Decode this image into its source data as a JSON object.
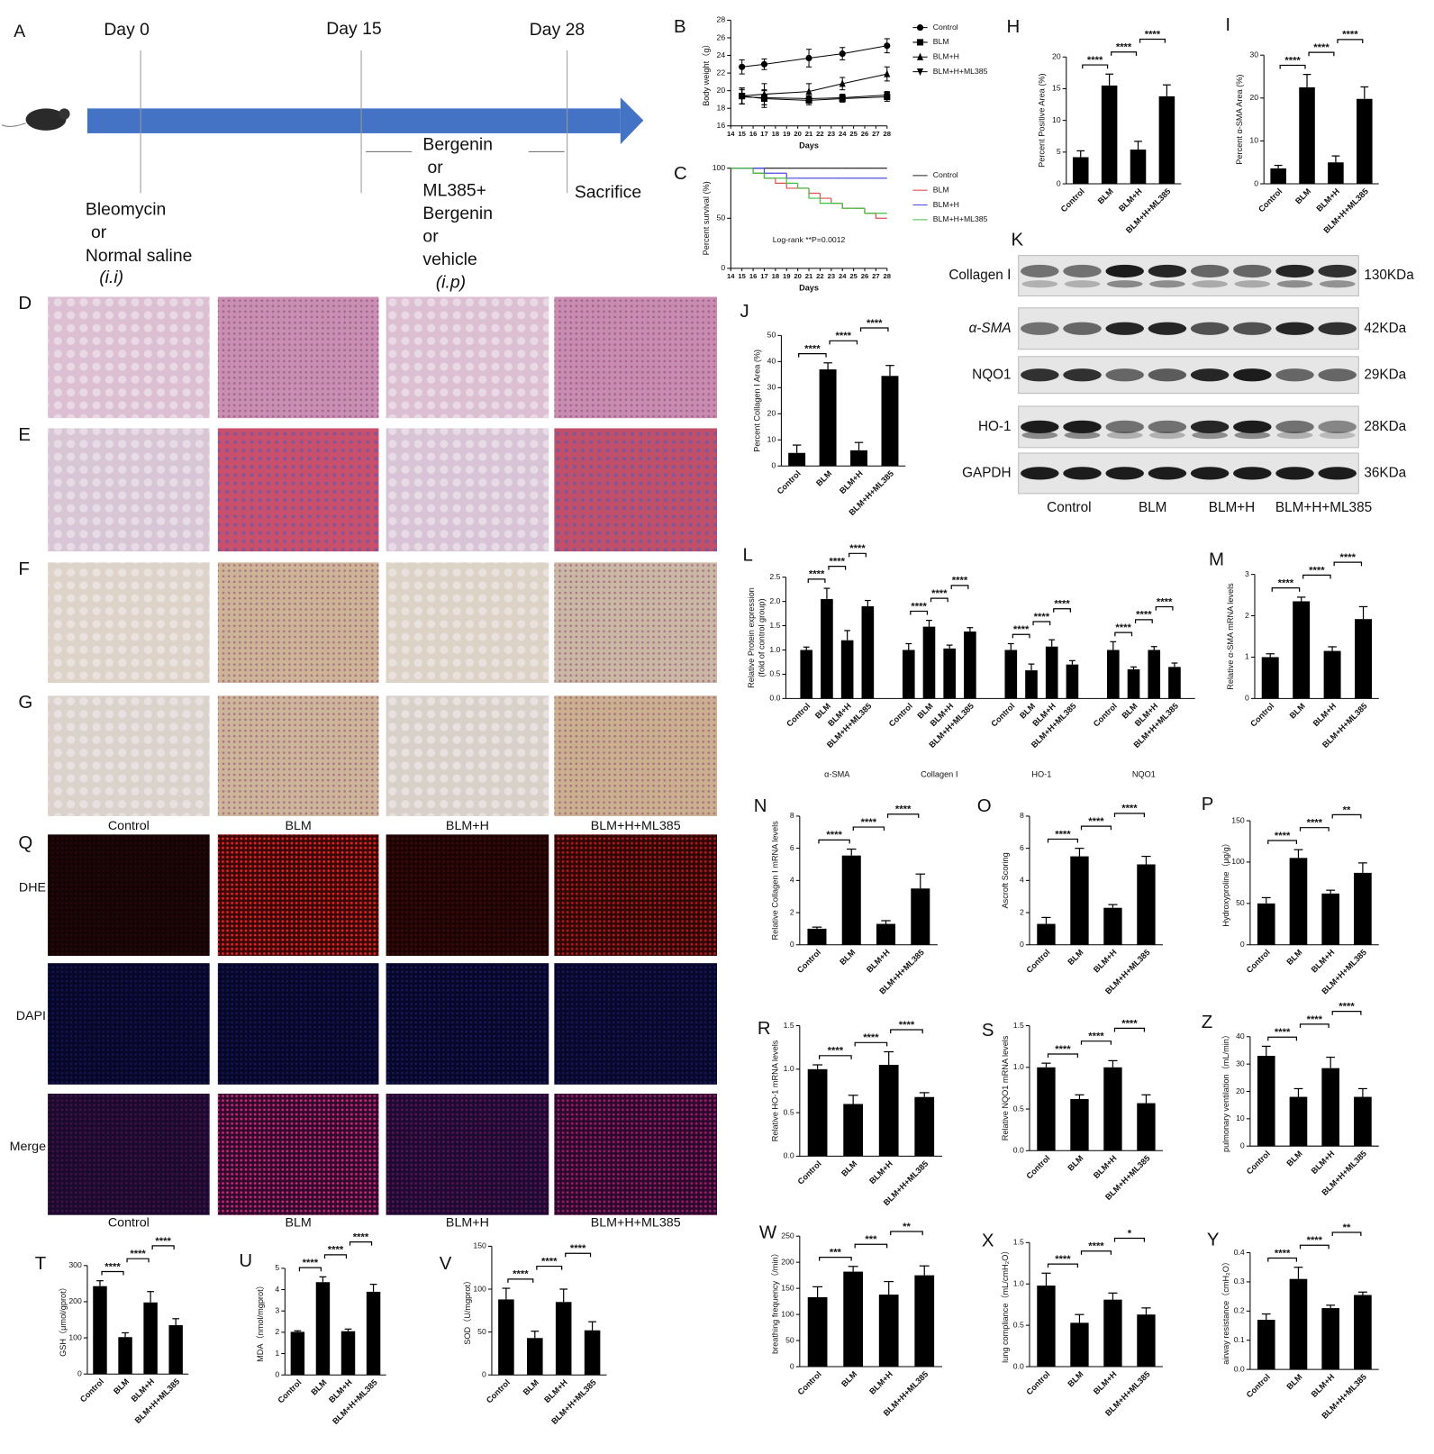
{
  "panel_a": {
    "letter": "A",
    "days": [
      "Day 0",
      "Day 15",
      "Day 28"
    ],
    "induction": [
      "Bleomycin",
      "or",
      "Normal saline",
      "(i.i)"
    ],
    "treatment": [
      "Bergenin",
      "or",
      "ML385+",
      "Bergenin",
      "or",
      "vehicle",
      "(i.p)"
    ],
    "endpoint": "Sacrifice"
  },
  "histology": {
    "letters": [
      "D",
      "E",
      "F",
      "G"
    ],
    "groups": [
      "Control",
      "BLM",
      "BLM+H",
      "BLM+H+ML385"
    ]
  },
  "fluorescence": {
    "letter": "Q",
    "stains": [
      "DHE",
      "DAPI",
      "Merge"
    ],
    "groups": [
      "Control",
      "BLM",
      "BLM+H",
      "BLM+H+ML385"
    ]
  },
  "western_blot": {
    "letter": "K",
    "proteins": [
      "Collagen Ⅰ",
      "α-SMA",
      "NQO1",
      "HO-1",
      "GAPDH"
    ],
    "sizes": [
      "130KDa",
      "42KDa",
      "29KDa",
      "28KDa",
      "36KDa"
    ],
    "groups": [
      "Control",
      "BLM",
      "BLM+H",
      "BLM+H+ML385"
    ]
  },
  "chart_data": [
    {
      "type": "line",
      "panel": "B",
      "xlabel": "Days",
      "ylabel": "Body weight（g）",
      "x": [
        15,
        17,
        21,
        24,
        28
      ],
      "xlim": [
        14,
        28
      ],
      "xticks": [
        14,
        15,
        16,
        17,
        18,
        19,
        20,
        21,
        22,
        23,
        24,
        25,
        26,
        27,
        28
      ],
      "ylim": [
        16,
        28
      ],
      "yticks": [
        16,
        18,
        20,
        22,
        24,
        26,
        28
      ],
      "legend": "right",
      "series": [
        {
          "name": "Control",
          "color": "#000000",
          "marker": "circle",
          "values": [
            22.7,
            23.0,
            23.7,
            24.2,
            25.1
          ],
          "errors": [
            0.8,
            0.6,
            1.0,
            0.7,
            0.8
          ]
        },
        {
          "name": "BLM",
          "color": "#000000",
          "marker": "square",
          "values": [
            19.4,
            19.1,
            18.9,
            19.1,
            19.3
          ],
          "errors": [
            0.9,
            1.0,
            0.5,
            0.4,
            0.5
          ]
        },
        {
          "name": "BLM+H",
          "color": "#000000",
          "marker": "triangle",
          "values": [
            19.4,
            19.6,
            19.9,
            20.8,
            21.9
          ],
          "errors": [
            0.9,
            1.2,
            0.9,
            0.7,
            0.8
          ]
        },
        {
          "name": "BLM+H+ML385",
          "color": "#000000",
          "marker": "triangle-down",
          "values": [
            19.3,
            19.2,
            19.1,
            19.2,
            19.5
          ],
          "errors": [
            0.8,
            0.8,
            0.5,
            0.4,
            0.4
          ]
        }
      ]
    },
    {
      "type": "line",
      "step": true,
      "panel": "C",
      "xlabel": "Days",
      "ylabel": "Percent survival (%)",
      "annotation": "Log-rank  **P=0.0012",
      "x": [
        14,
        15,
        16,
        17,
        18,
        19,
        20,
        21,
        22,
        23,
        24,
        25,
        26,
        27,
        28
      ],
      "xlim": [
        14,
        28
      ],
      "xticks": [
        14,
        15,
        16,
        17,
        18,
        19,
        20,
        21,
        22,
        23,
        24,
        25,
        26,
        27,
        28
      ],
      "ylim": [
        0,
        100
      ],
      "yticks": [
        0,
        50,
        100
      ],
      "legend": "right",
      "series": [
        {
          "name": "Control",
          "color": "#222222",
          "values": [
            100,
            100,
            100,
            100,
            100,
            100,
            100,
            100,
            100,
            100,
            100,
            100,
            100,
            100,
            100
          ]
        },
        {
          "name": "BLM",
          "color": "#e05050",
          "values": [
            100,
            100,
            95,
            90,
            85,
            80,
            80,
            75,
            70,
            65,
            60,
            60,
            55,
            50,
            50
          ]
        },
        {
          "name": "BLM+H",
          "color": "#4a4ae0",
          "values": [
            100,
            100,
            100,
            95,
            95,
            90,
            90,
            90,
            90,
            90,
            90,
            90,
            90,
            90,
            90
          ]
        },
        {
          "name": "BLM+H+ML385",
          "color": "#40c040",
          "values": [
            100,
            100,
            95,
            90,
            90,
            85,
            80,
            70,
            65,
            65,
            60,
            60,
            55,
            55,
            55
          ]
        }
      ]
    },
    {
      "type": "bar",
      "panel": "H",
      "ylabel": "Percent Positive Area (%)",
      "color": "#000000",
      "categories": [
        "Control",
        "BLM",
        "BLM+H",
        "BLM+H+ML385"
      ],
      "values": [
        4.2,
        15.5,
        5.4,
        13.8
      ],
      "errors": [
        1.0,
        1.8,
        1.3,
        1.8
      ],
      "significance": [
        "****",
        "****",
        "****"
      ],
      "ylim": [
        0,
        20
      ],
      "yticks": [
        0,
        5,
        10,
        15,
        20
      ]
    },
    {
      "type": "bar",
      "panel": "I",
      "ylabel": "Percent α-SMA Area (%)",
      "color": "#000000",
      "categories": [
        "Control",
        "BLM",
        "BLM+H",
        "BLM+H+ML385"
      ],
      "values": [
        3.6,
        22.5,
        5.0,
        19.8
      ],
      "errors": [
        0.7,
        3.0,
        1.5,
        2.8
      ],
      "significance": [
        "****",
        "****",
        "****"
      ],
      "ylim": [
        0,
        30
      ],
      "yticks": [
        0,
        10,
        20,
        30
      ]
    },
    {
      "type": "bar",
      "panel": "J",
      "ylabel": "Percent Collagen Ⅰ Area (%)",
      "color": "#000000",
      "categories": [
        "Control",
        "BLM",
        "BLM+H",
        "BLM+H+ML385"
      ],
      "values": [
        5,
        37,
        6,
        34.5
      ],
      "errors": [
        3,
        2.5,
        3,
        4
      ],
      "significance": [
        "****",
        "****",
        "****"
      ],
      "ylim": [
        0,
        50
      ],
      "yticks": [
        0,
        10,
        20,
        30,
        40,
        50
      ]
    },
    {
      "type": "grouped_bar",
      "panel": "L",
      "ylabel": [
        "Relative Protein expression",
        "(fold of control group)"
      ],
      "color": "#000000",
      "categories": [
        "Control",
        "BLM",
        "BLM+H",
        "BLM+H+ML385"
      ],
      "ylim": [
        0,
        2.5
      ],
      "yticks": [
        {
          "value": 0,
          "label": "0.0"
        },
        0.5,
        {
          "value": 1,
          "label": "1.0"
        },
        1.5,
        {
          "value": 2,
          "label": "2.0"
        },
        2.5
      ],
      "groups": [
        {
          "name": "α-SMA",
          "values": [
            1.0,
            2.05,
            1.2,
            1.9
          ],
          "errors": [
            0.06,
            0.22,
            0.2,
            0.12
          ],
          "significance": [
            "****",
            "****",
            "****"
          ]
        },
        {
          "name": "Collagen Ⅰ",
          "values": [
            1.0,
            1.48,
            1.03,
            1.38
          ],
          "errors": [
            0.13,
            0.13,
            0.07,
            0.08
          ],
          "significance": [
            "****",
            "****",
            "****"
          ]
        },
        {
          "name": "HO-1",
          "values": [
            1.0,
            0.58,
            1.07,
            0.7
          ],
          "errors": [
            0.13,
            0.13,
            0.14,
            0.08
          ],
          "significance": [
            "****",
            "****",
            "****"
          ]
        },
        {
          "name": "NQO1",
          "values": [
            1.0,
            0.6,
            1.0,
            0.65
          ],
          "errors": [
            0.17,
            0.05,
            0.07,
            0.08
          ],
          "significance": [
            "****",
            "****",
            "****"
          ]
        }
      ]
    },
    {
      "type": "bar",
      "panel": "M",
      "ylabel": "Relative α-SMA mRNA levels",
      "color": "#000000",
      "categories": [
        "Control",
        "BLM",
        "BLM+H",
        "BLM+H+ML385"
      ],
      "values": [
        1.0,
        2.35,
        1.15,
        1.92
      ],
      "errors": [
        0.08,
        0.1,
        0.1,
        0.3
      ],
      "significance": [
        "****",
        "****",
        "****"
      ],
      "ylim": [
        0,
        3
      ],
      "yticks": [
        0,
        1,
        2,
        3
      ]
    },
    {
      "type": "bar",
      "panel": "N",
      "ylabel": "Relative Collagen Ⅰ mRNA levels",
      "color": "#000000",
      "categories": [
        "Control",
        "BLM",
        "BLM+H",
        "BLM+H+ML385"
      ],
      "values": [
        1.0,
        5.55,
        1.3,
        3.5
      ],
      "errors": [
        0.1,
        0.4,
        0.2,
        0.9
      ],
      "significance": [
        "****",
        "****",
        "****"
      ],
      "ylim": [
        0,
        8
      ],
      "yticks": [
        0,
        2,
        4,
        6,
        8
      ]
    },
    {
      "type": "bar",
      "panel": "O",
      "ylabel": "Ascroft Scoring",
      "color": "#000000",
      "categories": [
        "Control",
        "BLM",
        "BLM+H",
        "BLM+H+ML385"
      ],
      "values": [
        1.3,
        5.5,
        2.3,
        5.0
      ],
      "errors": [
        0.4,
        0.5,
        0.2,
        0.5
      ],
      "significance": [
        "****",
        "****",
        "****"
      ],
      "ylim": [
        0,
        8
      ],
      "yticks": [
        0,
        2,
        4,
        6,
        8
      ]
    },
    {
      "type": "bar",
      "panel": "P",
      "ylabel": "Hydroxyproline（μg/g）",
      "color": "#000000",
      "categories": [
        "Control",
        "BLM",
        "BLM+H",
        "BLM+H+ML385"
      ],
      "values": [
        50,
        105,
        62,
        87
      ],
      "errors": [
        7,
        10,
        4,
        12
      ],
      "significance": [
        "****",
        "****",
        "**"
      ],
      "ylim": [
        0,
        150
      ],
      "yticks": [
        0,
        50,
        100,
        150
      ]
    },
    {
      "type": "bar",
      "panel": "R",
      "ylabel": "Relative HO-1 mRNA levels",
      "color": "#000000",
      "categories": [
        "Control",
        "BLM",
        "BLM+H",
        "BLM+H+ML385"
      ],
      "values": [
        1.0,
        0.6,
        1.05,
        0.68
      ],
      "errors": [
        0.05,
        0.1,
        0.15,
        0.05
      ],
      "significance": [
        "****",
        "****",
        "****"
      ],
      "ylim": [
        0,
        1.5
      ],
      "yticks": [
        {
          "value": 0,
          "label": "0.0"
        },
        0.5,
        {
          "value": 1,
          "label": "1.0"
        },
        1.5
      ]
    },
    {
      "type": "bar",
      "panel": "S",
      "ylabel": "Relative NQO1 mRNA levels",
      "color": "#000000",
      "categories": [
        "Control",
        "BLM",
        "BLM+H",
        "BLM+H+ML385"
      ],
      "values": [
        1.0,
        0.62,
        1.0,
        0.57
      ],
      "errors": [
        0.05,
        0.05,
        0.08,
        0.1
      ],
      "significance": [
        "****",
        "****",
        "****"
      ],
      "ylim": [
        0,
        1.5
      ],
      "yticks": [
        {
          "value": 0,
          "label": "0.0"
        },
        0.5,
        {
          "value": 1,
          "label": "1.0"
        },
        1.5
      ]
    },
    {
      "type": "bar",
      "panel": "Z",
      "ylabel": "pulmonary ventilation（mL/min）",
      "color": "#000000",
      "categories": [
        "Control",
        "BLM",
        "BLM+H",
        "BLM+H+ML385"
      ],
      "values": [
        33,
        18,
        28.5,
        18
      ],
      "errors": [
        3.5,
        3,
        4,
        3
      ],
      "significance": [
        "****",
        "****",
        "****"
      ],
      "ylim": [
        0,
        40
      ],
      "yticks": [
        0,
        10,
        20,
        30,
        40
      ]
    },
    {
      "type": "bar",
      "panel": "W",
      "ylabel": "breathing frequency（/min）",
      "color": "#000000",
      "categories": [
        "Control",
        "BLM",
        "BLM+H",
        "BLM+H+ML385"
      ],
      "values": [
        133,
        182,
        138,
        175
      ],
      "errors": [
        20,
        10,
        25,
        18
      ],
      "significance": [
        "***",
        "***",
        "**"
      ],
      "ylim": [
        0,
        250
      ],
      "yticks": [
        0,
        50,
        100,
        150,
        200,
        250
      ]
    },
    {
      "type": "bar",
      "panel": "X",
      "ylabel": "lung compliance（mL/cmH₂O）",
      "color": "#000000",
      "categories": [
        "Control",
        "BLM",
        "BLM+H",
        "BLM+H+ML385"
      ],
      "values": [
        0.98,
        0.53,
        0.81,
        0.63
      ],
      "errors": [
        0.15,
        0.1,
        0.08,
        0.08
      ],
      "significance": [
        "****",
        "****",
        "*"
      ],
      "ylim": [
        0,
        1.5
      ],
      "yticks": [
        {
          "value": 0,
          "label": "0.0"
        },
        0.5,
        {
          "value": 1,
          "label": "1.0"
        },
        1.5
      ]
    },
    {
      "type": "bar",
      "panel": "Y",
      "ylabel": "airway resistance（cmH₂O）",
      "color": "#000000",
      "categories": [
        "Control",
        "BLM",
        "BLM+H",
        "BLM+H+ML385"
      ],
      "values": [
        0.17,
        0.31,
        0.21,
        0.255
      ],
      "errors": [
        0.02,
        0.04,
        0.01,
        0.01
      ],
      "significance": [
        "****",
        "****",
        "**"
      ],
      "ylim": [
        0,
        0.4
      ],
      "yticks": [
        {
          "value": 0,
          "label": "0.0"
        },
        0.1,
        0.2,
        0.3,
        0.4
      ]
    },
    {
      "type": "bar",
      "panel": "T",
      "ylabel": "GSH（μmol/gprot）",
      "color": "#000000",
      "categories": [
        "Control",
        "BLM",
        "BLM+H",
        "BLM+H+ML385"
      ],
      "values": [
        243,
        102,
        198,
        135
      ],
      "errors": [
        15,
        12,
        30,
        18
      ],
      "significance": [
        "****",
        "****",
        "****"
      ],
      "ylim": [
        0,
        300
      ],
      "yticks": [
        0,
        100,
        200,
        300
      ]
    },
    {
      "type": "bar",
      "panel": "U",
      "ylabel": "MDA（nmol/mgprot）",
      "color": "#000000",
      "categories": [
        "Control",
        "BLM",
        "BLM+H",
        "BLM+H+ML385"
      ],
      "values": [
        2.02,
        4.35,
        2.05,
        3.9
      ],
      "errors": [
        0.05,
        0.25,
        0.1,
        0.35
      ],
      "significance": [
        "****",
        "****",
        "****"
      ],
      "ylim": [
        0,
        5
      ],
      "yticks": [
        0,
        1,
        2,
        3,
        4,
        5
      ]
    },
    {
      "type": "bar",
      "panel": "V",
      "ylabel": "SOD（U/mgprot）",
      "color": "#000000",
      "categories": [
        "Control",
        "BLM",
        "BLM+H",
        "BLM+H+ML385"
      ],
      "values": [
        88,
        43,
        85,
        52
      ],
      "errors": [
        13,
        8,
        15,
        10
      ],
      "significance": [
        "****",
        "****",
        "****"
      ],
      "ylim": [
        0,
        150
      ],
      "yticks": [
        0,
        50,
        100,
        150
      ]
    }
  ]
}
